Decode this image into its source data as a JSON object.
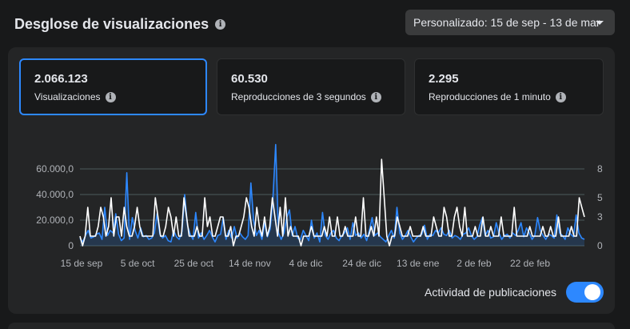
{
  "header": {
    "title": "Desglose de visualizaciones",
    "date_range": "Personalizado: 15 de sep - 13 de mar"
  },
  "cards": [
    {
      "value": "2.066.123",
      "label": "Visualizaciones",
      "selected": true
    },
    {
      "value": "60.530",
      "label": "Reproducciones de 3 segundos",
      "selected": false
    },
    {
      "value": "2.295",
      "label": "Reproducciones de 1 minuto",
      "selected": false
    }
  ],
  "toggle": {
    "label": "Actividad de publicaciones",
    "on": true
  },
  "colors": {
    "accent": "#2d88ff",
    "secondary_line": "#ffffff",
    "grid": "#4b5a5c"
  },
  "chart_data": {
    "type": "line",
    "x_start": "15 de sep",
    "x_end": "13 de mar",
    "x_tick_labels": [
      "15 de sep",
      "5 de oct",
      "25 de oct",
      "14 de nov",
      "4 de dic",
      "24 de dic",
      "13 de ene",
      "2 de feb",
      "22 de feb"
    ],
    "y_left_ticks": [
      "60.000,0",
      "40.000,0",
      "20.000,0",
      "0"
    ],
    "y_left_values": [
      60000,
      40000,
      20000,
      0
    ],
    "y_right_ticks": [
      "8",
      "5",
      "3",
      "0"
    ],
    "y_right_values": [
      8,
      5,
      3,
      0
    ],
    "ylim_left": [
      0,
      60000
    ],
    "ylim_right": [
      0,
      8
    ],
    "grid": true,
    "series": [
      {
        "axis": "left",
        "color": "#2d88ff",
        "area": true,
        "values": [
          6000,
          3000,
          8000,
          12000,
          6000,
          7000,
          9000,
          10000,
          5000,
          30000,
          8000,
          12000,
          10000,
          25000,
          9000,
          4000,
          6000,
          57000,
          5000,
          22000,
          12000,
          6000,
          14000,
          7000,
          8000,
          5000,
          6000,
          10000,
          25000,
          9000,
          6000,
          8000,
          4000,
          3000,
          12000,
          7000,
          5000,
          11000,
          40000,
          16000,
          9000,
          5000,
          26000,
          6000,
          10000,
          5000,
          8000,
          12000,
          7000,
          3000,
          8000,
          9000,
          22000,
          5000,
          12000,
          6000,
          15000,
          6000,
          10000,
          7000,
          5000,
          8000,
          49000,
          20000,
          8000,
          12000,
          5000,
          18000,
          7000,
          13000,
          37000,
          79000,
          10000,
          5000,
          10000,
          22000,
          28000,
          8000,
          15000,
          6000,
          5000,
          12000,
          8000,
          4000,
          20000,
          6000,
          10000,
          3000,
          26000,
          8000,
          5000,
          10000,
          12000,
          6000,
          4000,
          8000,
          10000,
          14000,
          5000,
          18000,
          8000,
          10000,
          6000,
          9000,
          4000,
          12000,
          22000,
          8000,
          10000,
          7000,
          5000,
          3000,
          8000,
          12000,
          6000,
          30000,
          10000,
          5000,
          8000,
          12000,
          7000,
          3000,
          6000,
          8000,
          9000,
          16000,
          5000,
          9000,
          8000,
          12000,
          10000,
          14000,
          9000,
          8000,
          12000,
          6000,
          8000,
          7000,
          5000,
          9000,
          10000,
          14000,
          8000,
          5000,
          7000,
          16000,
          22000,
          8000,
          12000,
          6000,
          7000,
          18000,
          10000,
          5000,
          8000,
          9000,
          6000,
          10000,
          8000,
          12000,
          18000,
          7000,
          14000,
          10000,
          5000,
          8000,
          22000,
          12000,
          8000,
          5000,
          9000,
          8000,
          6000,
          24000,
          10000,
          8000,
          5000,
          14000,
          9000,
          7000,
          24000,
          10000,
          6000,
          5000
        ]
      },
      {
        "axis": "right",
        "color": "#ffffff",
        "area": false,
        "values": [
          1,
          0,
          1,
          4,
          1,
          1,
          1,
          2,
          4,
          3,
          1,
          2,
          5,
          1,
          3,
          3,
          1,
          4,
          2,
          1,
          1,
          2,
          4,
          2,
          1,
          1,
          1,
          1,
          1,
          5,
          3,
          1,
          1,
          2,
          4,
          3,
          1,
          3,
          1,
          1,
          5,
          3,
          1,
          1,
          1,
          2,
          1,
          1,
          5,
          2,
          3,
          1,
          1,
          2,
          3,
          3,
          1,
          1,
          2,
          0,
          1,
          1,
          2,
          3,
          5,
          4,
          2,
          1,
          4,
          2,
          1,
          3,
          1,
          2,
          5,
          3,
          1,
          4,
          1,
          5,
          1,
          2,
          1,
          1,
          1,
          0,
          1,
          1,
          1,
          2,
          1,
          1,
          1,
          1,
          2,
          1,
          3,
          1,
          1,
          3,
          1,
          1,
          2,
          1,
          1,
          1,
          3,
          1,
          1,
          5,
          1,
          1,
          2,
          1,
          3,
          1,
          9,
          5,
          1,
          0,
          1,
          1,
          3,
          2,
          1,
          1,
          1,
          2,
          1,
          1,
          1,
          1,
          2,
          1,
          1,
          1,
          3,
          2,
          1,
          1,
          4,
          3,
          1,
          1,
          3,
          4,
          2,
          1,
          4,
          1,
          1,
          1,
          2,
          1,
          1,
          3,
          1,
          1,
          2,
          1,
          1,
          1,
          3,
          1,
          1,
          1,
          1,
          4,
          1,
          1,
          1,
          1,
          1,
          2,
          1,
          1,
          1,
          1,
          2,
          1,
          1,
          2,
          1,
          1,
          3,
          1,
          1,
          1,
          1,
          2,
          1,
          1,
          5,
          4,
          3
        ]
      }
    ]
  }
}
